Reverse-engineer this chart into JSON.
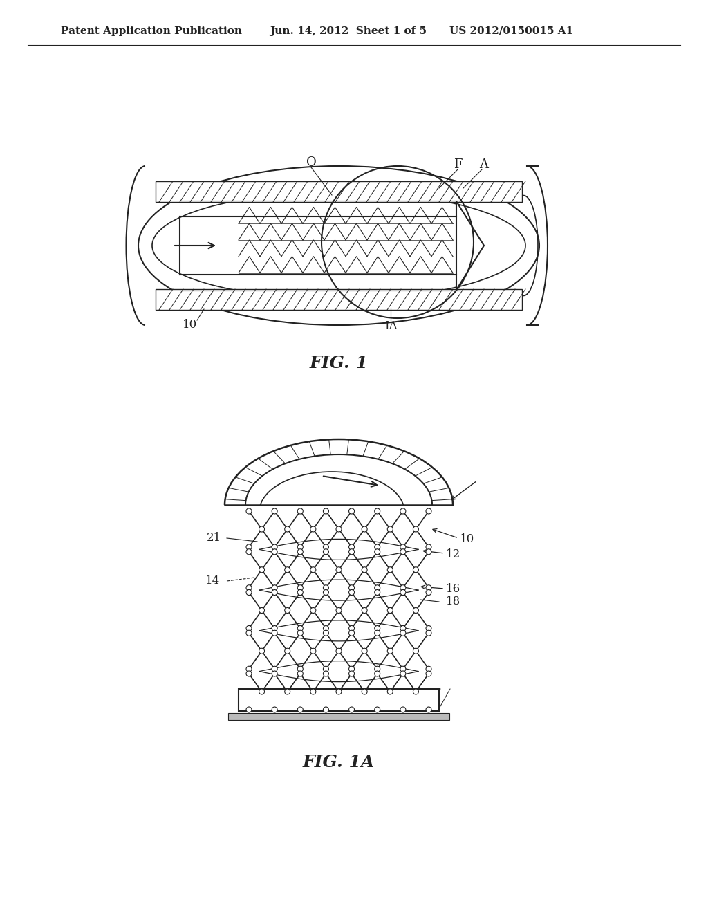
{
  "bg_color": "#ffffff",
  "line_color": "#222222",
  "header_text_left": "Patent Application Publication",
  "header_text_mid": "Jun. 14, 2012  Sheet 1 of 5",
  "header_text_right": "US 2012/0150015 A1",
  "fig1_label": "FIG. 1",
  "fig1a_label": "FIG. 1A"
}
